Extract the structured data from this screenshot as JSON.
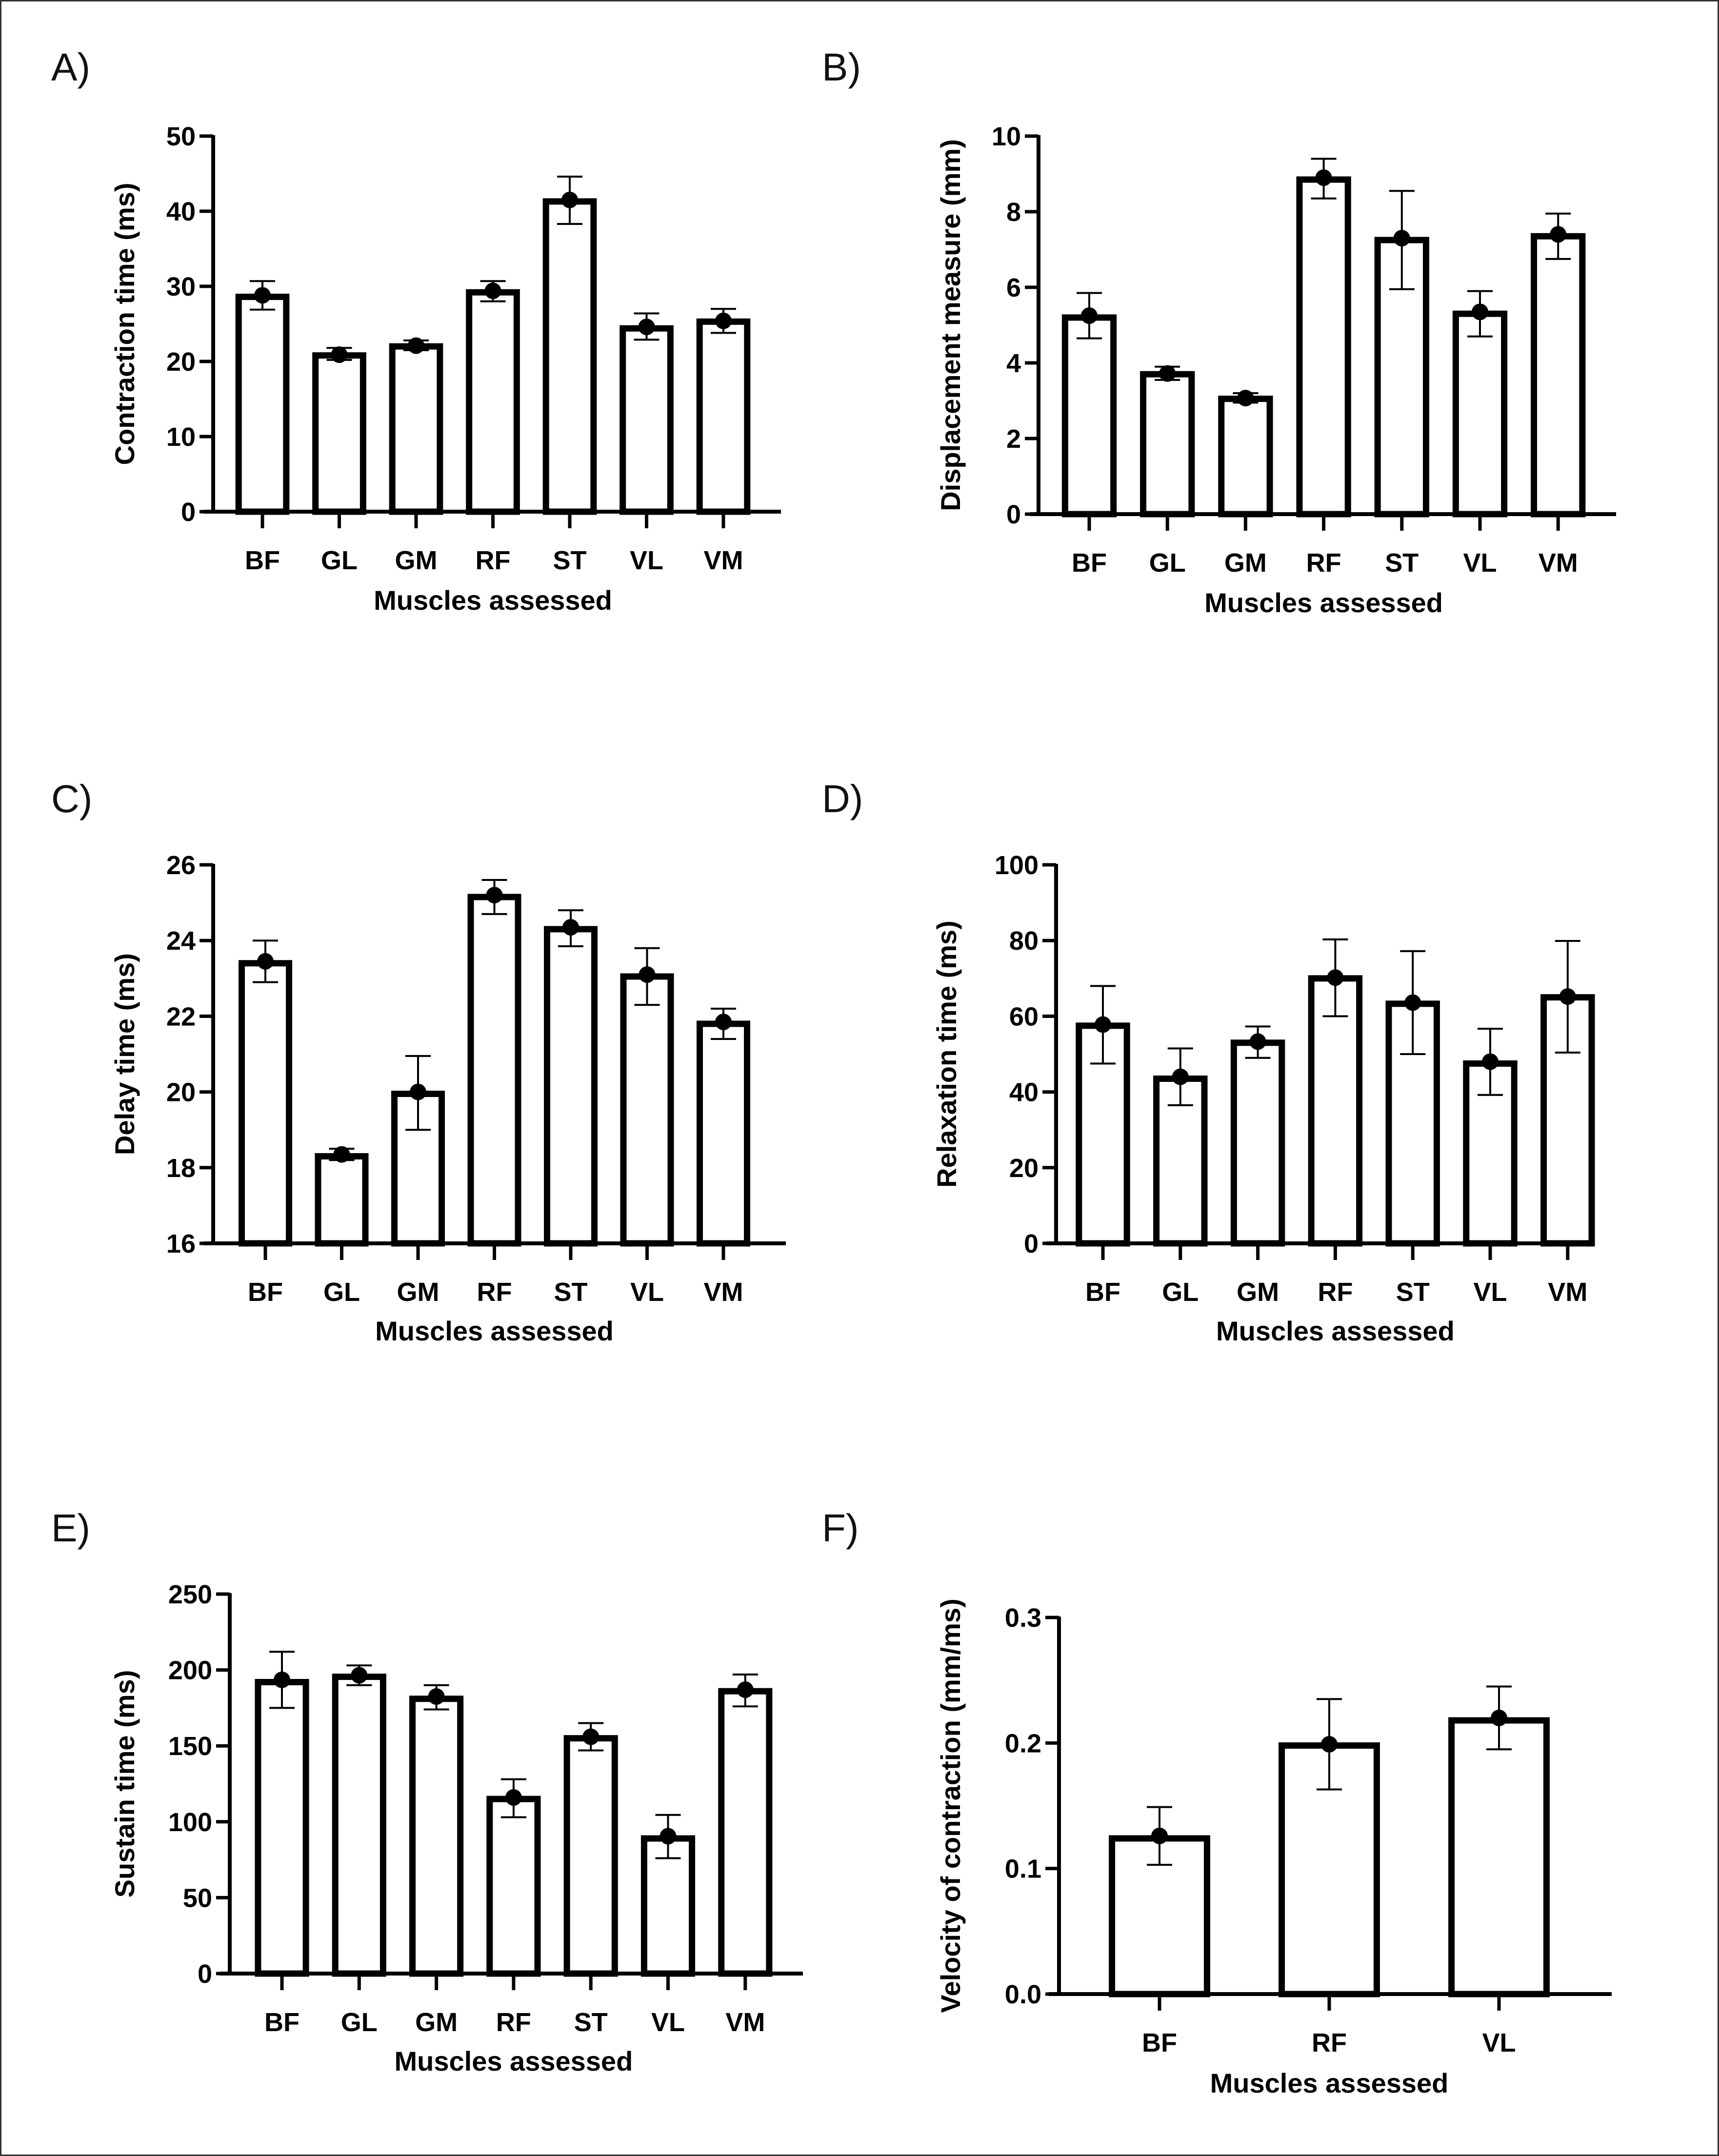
{
  "figure": {
    "border_color": "#333333",
    "bar_fill": "#ffffff",
    "stroke_color": "#000000"
  },
  "chart_data": [
    {
      "id": "A",
      "panel_label": "A)",
      "type": "bar",
      "title": "",
      "xlabel": "Muscles assessed",
      "ylabel": "Contraction time (ms)",
      "ylim": [
        0,
        50
      ],
      "yticks": [
        0,
        10,
        20,
        30,
        40,
        50
      ],
      "ytick_labels": [
        "0",
        "10",
        "20",
        "30",
        "40",
        "50"
      ],
      "categories": [
        "BF",
        "GL",
        "GM",
        "RF",
        "ST",
        "VL",
        "VM"
      ],
      "values": [
        28.6,
        20.8,
        22.0,
        29.2,
        41.3,
        24.4,
        25.3
      ],
      "points": [
        28.8,
        20.9,
        22.1,
        29.4,
        41.5,
        24.6,
        25.4
      ],
      "err_low": [
        26.9,
        20.2,
        21.5,
        28.0,
        38.3,
        22.9,
        23.8
      ],
      "err_high": [
        30.7,
        21.8,
        22.8,
        30.7,
        44.6,
        26.4,
        27.0
      ],
      "grid": false,
      "legend": "none"
    },
    {
      "id": "B",
      "panel_label": "B)",
      "type": "bar",
      "title": "",
      "xlabel": "Muscles assessed",
      "ylabel": "Displacement measure (mm)",
      "ylim": [
        0,
        10
      ],
      "yticks": [
        0,
        2,
        4,
        6,
        8,
        10
      ],
      "ytick_labels": [
        "0",
        "2",
        "4",
        "6",
        "8",
        "10"
      ],
      "categories": [
        "BF",
        "GL",
        "GM",
        "RF",
        "ST",
        "VL",
        "VM"
      ],
      "values": [
        5.2,
        3.7,
        3.05,
        8.85,
        7.25,
        5.3,
        7.35
      ],
      "points": [
        5.25,
        3.72,
        3.07,
        8.9,
        7.3,
        5.35,
        7.4
      ],
      "err_low": [
        4.65,
        3.55,
        2.95,
        8.35,
        5.95,
        4.7,
        6.75
      ],
      "err_high": [
        5.85,
        3.9,
        3.2,
        9.4,
        8.55,
        5.9,
        7.95
      ],
      "grid": false,
      "legend": "none"
    },
    {
      "id": "C",
      "panel_label": "C)",
      "type": "bar",
      "title": "",
      "xlabel": "Muscles assessed",
      "ylabel": "Delay time (ms)",
      "ylim": [
        16,
        26
      ],
      "yticks": [
        16,
        18,
        20,
        22,
        24,
        26
      ],
      "ytick_labels": [
        "16",
        "18",
        "20",
        "22",
        "24",
        "26"
      ],
      "categories": [
        "BF",
        "GL",
        "GM",
        "RF",
        "ST",
        "VL",
        "VM"
      ],
      "values": [
        23.4,
        18.3,
        19.95,
        25.15,
        24.3,
        23.05,
        21.8
      ],
      "points": [
        23.45,
        18.35,
        20.0,
        25.2,
        24.35,
        23.1,
        21.85
      ],
      "err_low": [
        22.9,
        18.2,
        19.0,
        24.7,
        23.85,
        22.3,
        21.4
      ],
      "err_high": [
        24.0,
        18.5,
        20.95,
        25.6,
        24.8,
        23.8,
        22.2
      ],
      "grid": false,
      "legend": "none"
    },
    {
      "id": "D",
      "panel_label": "D)",
      "type": "bar",
      "title": "",
      "xlabel": "Muscles assessed",
      "ylabel": "Relaxation time (ms)",
      "ylim": [
        0,
        100
      ],
      "yticks": [
        0,
        20,
        40,
        60,
        80,
        100
      ],
      "ytick_labels": [
        "0",
        "20",
        "40",
        "60",
        "80",
        "100"
      ],
      "categories": [
        "BF",
        "GL",
        "GM",
        "RF",
        "ST",
        "VL",
        "VM"
      ],
      "values": [
        57.5,
        43.5,
        53.0,
        70.0,
        63.3,
        47.5,
        65.0
      ],
      "points": [
        57.8,
        44.0,
        53.3,
        70.2,
        63.6,
        48.0,
        65.2
      ],
      "err_low": [
        47.5,
        36.5,
        49.0,
        60.0,
        50.0,
        39.2,
        50.4
      ],
      "err_high": [
        68.0,
        51.5,
        57.3,
        80.3,
        77.2,
        56.7,
        79.9
      ],
      "grid": false,
      "legend": "none"
    },
    {
      "id": "E",
      "panel_label": "E)",
      "type": "bar",
      "title": "",
      "xlabel": "Muscles assessed",
      "ylabel": "Sustain time (ms)",
      "ylim": [
        0,
        250
      ],
      "yticks": [
        0,
        50,
        100,
        150,
        200,
        250
      ],
      "ytick_labels": [
        "0",
        "50",
        "100",
        "150",
        "200",
        "250"
      ],
      "categories": [
        "BF",
        "GL",
        "GM",
        "RF",
        "ST",
        "VL",
        "VM"
      ],
      "values": [
        192,
        195.5,
        181,
        115,
        155,
        89,
        186
      ],
      "points": [
        193.5,
        196.5,
        182.5,
        116,
        156,
        90.5,
        187
      ],
      "err_low": [
        175,
        190,
        174,
        103,
        147,
        76,
        176
      ],
      "err_high": [
        212,
        203,
        190,
        128,
        165,
        104.5,
        197
      ],
      "grid": false,
      "legend": "none"
    },
    {
      "id": "F",
      "panel_label": "F)",
      "type": "bar",
      "title": "",
      "xlabel": "Muscles assessed",
      "ylabel": "Velocity of contraction (mm/ms)",
      "ylim": [
        0,
        0.3
      ],
      "yticks": [
        0,
        0.1,
        0.2,
        0.3
      ],
      "ytick_labels": [
        "0.0",
        "0.1",
        "0.2",
        "0.3"
      ],
      "categories": [
        "BF",
        "RF",
        "VL"
      ],
      "values": [
        0.124,
        0.198,
        0.218
      ],
      "points": [
        0.126,
        0.199,
        0.22
      ],
      "err_low": [
        0.103,
        0.163,
        0.195
      ],
      "err_high": [
        0.149,
        0.235,
        0.245
      ],
      "grid": false,
      "legend": "none"
    }
  ]
}
